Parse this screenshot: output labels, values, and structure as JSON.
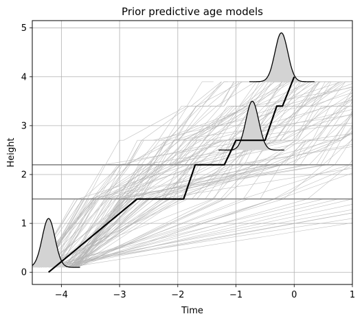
{
  "chart_data": {
    "type": "line",
    "title": "Prior predictive age models",
    "xlabel": "Time",
    "ylabel": "Height",
    "xlim": [
      -4.5,
      1.0
    ],
    "ylim": [
      -0.25,
      5.15
    ],
    "xticks": [
      -4,
      -3,
      -2,
      -1,
      0,
      1
    ],
    "yticks": [
      0,
      1,
      2,
      3,
      4,
      5
    ],
    "xtick_labels": [
      "−4",
      "−3",
      "−2",
      "−1",
      "0",
      "1"
    ],
    "ytick_labels": [
      "0",
      "1",
      "2",
      "3",
      "4",
      "5"
    ],
    "grid": true,
    "legend": "none",
    "horizons": [
      {
        "height": 1.5,
        "color": "#888888"
      },
      {
        "height": 2.2,
        "color": "#888888"
      }
    ],
    "age_distributions": [
      {
        "height": 0.1,
        "mean": -4.22,
        "sd": 0.11,
        "peak": 1.0,
        "x_range": [
          -4.5,
          -3.68
        ]
      },
      {
        "height": 2.5,
        "mean": -0.72,
        "sd": 0.11,
        "peak": 1.0,
        "x_range": [
          -1.3,
          -0.17
        ]
      },
      {
        "height": 3.9,
        "mean": -0.22,
        "sd": 0.11,
        "peak": 1.0,
        "x_range": [
          -0.77,
          0.35
        ]
      }
    ],
    "highlighted_model": {
      "color": "#000000",
      "x": [
        -4.22,
        -2.7,
        -1.9,
        -1.7,
        -1.2,
        -1.0,
        -0.5,
        -0.3,
        -0.2,
        0.0
      ],
      "y": [
        0.0,
        1.5,
        1.5,
        2.2,
        2.2,
        2.7,
        2.7,
        3.4,
        3.4,
        4.0
      ]
    },
    "sampled_models": {
      "color": "#b4b4b4",
      "count": 100,
      "x_start_range": [
        -4.5,
        -3.7
      ],
      "y_start": 0.1,
      "y_end": 3.9
    }
  }
}
